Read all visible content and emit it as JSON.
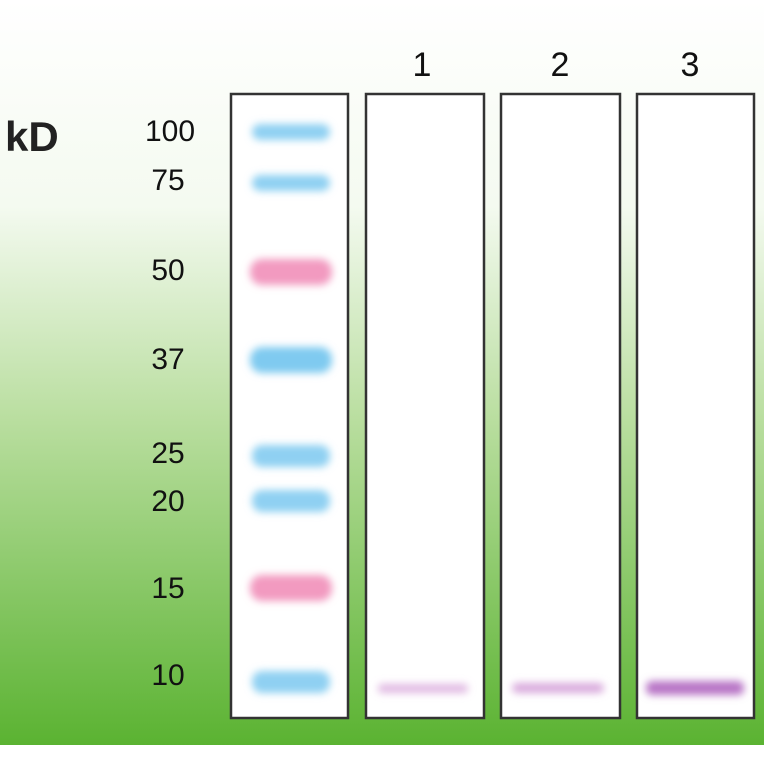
{
  "unit_label": "kD",
  "markers": [
    {
      "label": "100"
    },
    {
      "label": "75"
    },
    {
      "label": "50"
    },
    {
      "label": "37"
    },
    {
      "label": "25"
    },
    {
      "label": "20"
    },
    {
      "label": "15"
    },
    {
      "label": "10"
    }
  ],
  "lanes": [
    {
      "label": "1"
    },
    {
      "label": "2"
    },
    {
      "label": "3"
    }
  ]
}
